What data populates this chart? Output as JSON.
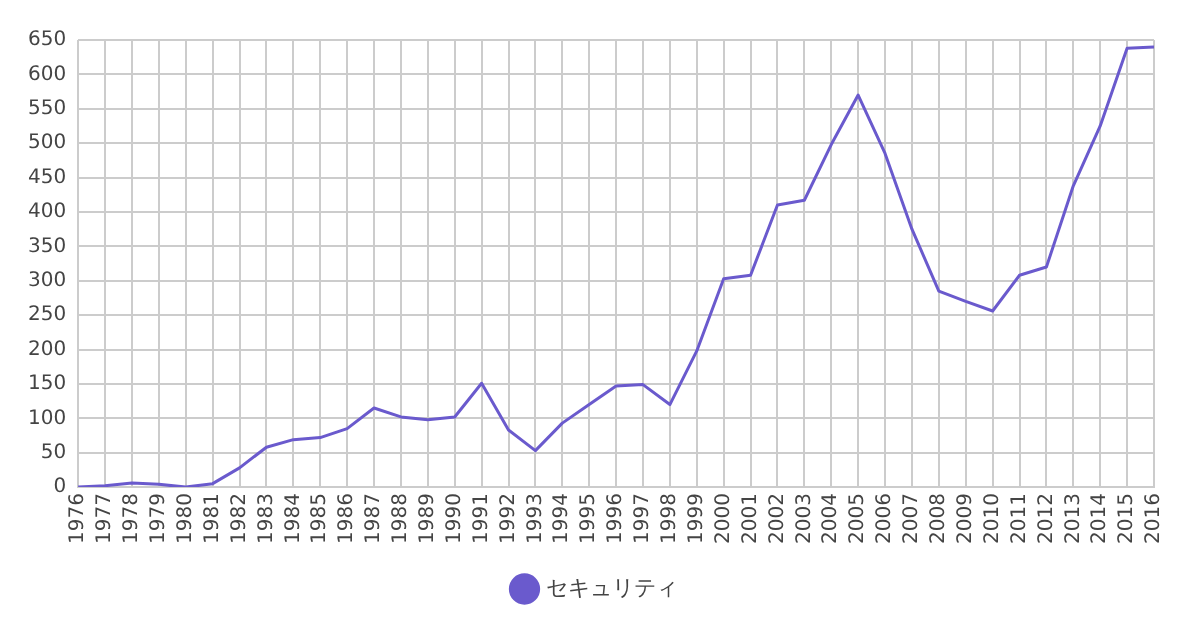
{
  "chart_data": {
    "type": "line",
    "categories": [
      "1976",
      "1977",
      "1978",
      "1979",
      "1980",
      "1981",
      "1982",
      "1983",
      "1984",
      "1985",
      "1986",
      "1987",
      "1988",
      "1989",
      "1990",
      "1991",
      "1992",
      "1993",
      "1994",
      "1995",
      "1996",
      "1997",
      "1998",
      "1999",
      "2000",
      "2001",
      "2002",
      "2003",
      "2004",
      "2005",
      "2006",
      "2007",
      "2008",
      "2009",
      "2010",
      "2011",
      "2012",
      "2013",
      "2014",
      "2015",
      "2016"
    ],
    "series": [
      {
        "name": "セキュリティ",
        "color": "#6a5acd",
        "values": [
          0,
          2,
          6,
          4,
          0,
          5,
          28,
          58,
          69,
          72,
          85,
          115,
          102,
          98,
          102,
          151,
          83,
          53,
          93,
          120,
          147,
          149,
          120,
          198,
          303,
          308,
          410,
          417,
          498,
          570,
          485,
          375,
          285,
          270,
          256,
          308,
          320,
          438,
          525,
          638,
          640
        ]
      }
    ],
    "ylim": [
      0,
      650
    ],
    "yticks": [
      0,
      50,
      100,
      150,
      200,
      250,
      300,
      350,
      400,
      450,
      500,
      550,
      600,
      650
    ],
    "grid": true,
    "legend": "bottom",
    "marker": "none",
    "line_style": "solid"
  }
}
